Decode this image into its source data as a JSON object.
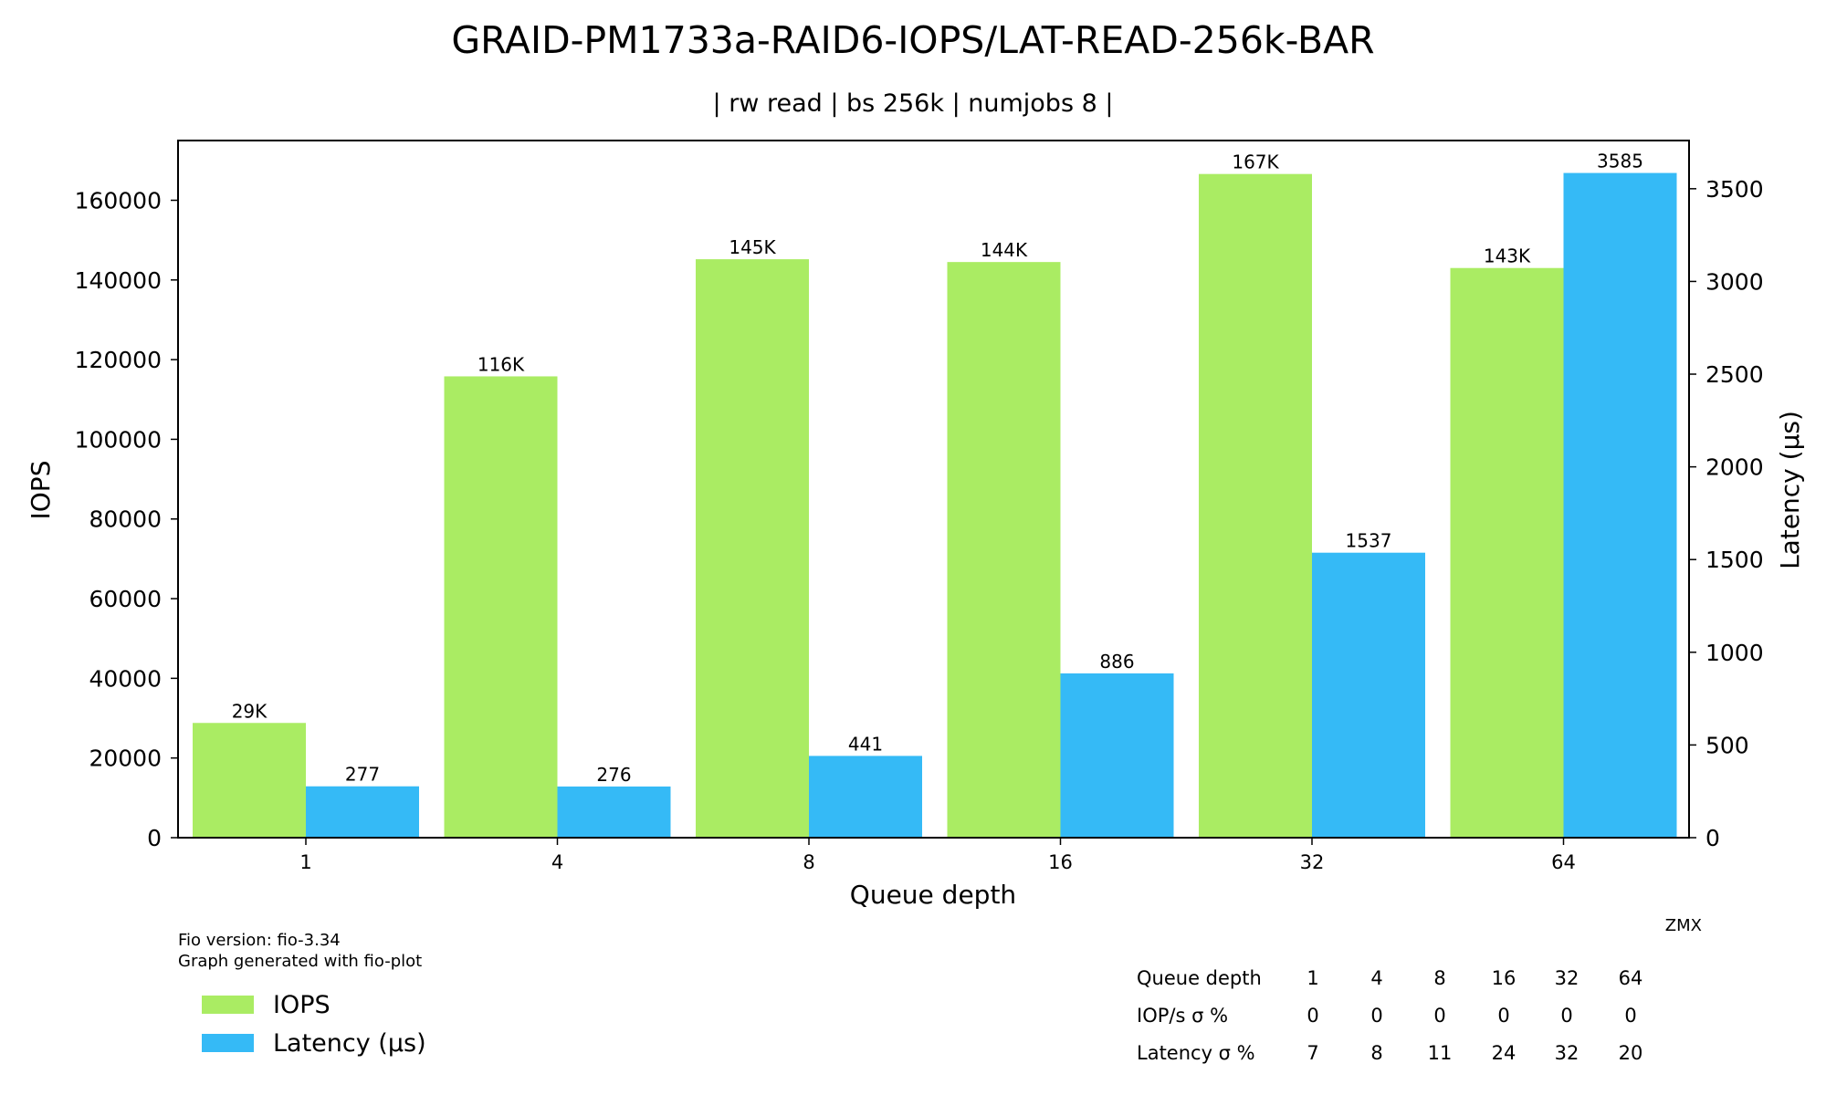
{
  "colors": {
    "iops": "#aaec63",
    "latency": "#35baf6"
  },
  "footer": {
    "fio_version": "Fio version: fio-3.34",
    "generated_with": "Graph generated with fio-plot",
    "author": "ZMX"
  },
  "legend": [
    "IOPS",
    "Latency (µs)"
  ],
  "stats_table": {
    "rows": [
      {
        "label": "Queue depth",
        "values": [
          "1",
          "4",
          "8",
          "16",
          "32",
          "64"
        ]
      },
      {
        "label": "IOP/s σ %",
        "values": [
          "0",
          "0",
          "0",
          "0",
          "0",
          "0"
        ]
      },
      {
        "label": "Latency σ %",
        "values": [
          "7",
          "8",
          "11",
          "24",
          "32",
          "20"
        ]
      }
    ]
  },
  "chart_data": {
    "type": "bar",
    "title": "GRAID-PM1733a-RAID6-IOPS/LAT-READ-256k-BAR",
    "subtitle": "| rw read | bs 256k | numjobs 8 |",
    "xlabel": "Queue depth",
    "ylabel": "IOPS",
    "y2label": "Latency (µs)",
    "categories": [
      "1",
      "4",
      "8",
      "16",
      "32",
      "64"
    ],
    "ylim": [
      0,
      175000
    ],
    "y2lim": [
      0,
      3760
    ],
    "yticks": [
      0,
      20000,
      40000,
      60000,
      80000,
      100000,
      120000,
      140000,
      160000
    ],
    "y2ticks": [
      0,
      500,
      1000,
      1500,
      2000,
      2500,
      3000,
      3500
    ],
    "series": [
      {
        "name": "IOPS",
        "axis": "left",
        "values": [
          28800,
          115800,
          145200,
          144500,
          166600,
          143000
        ],
        "labels": [
          "29K",
          "116K",
          "145K",
          "144K",
          "167K",
          "143K"
        ]
      },
      {
        "name": "Latency (µs)",
        "axis": "right",
        "values": [
          277,
          276,
          441,
          886,
          1537,
          3585
        ],
        "labels": [
          "277",
          "276",
          "441",
          "886",
          "1537",
          "3585"
        ]
      }
    ],
    "grid": false,
    "legend_position": "bottom-left"
  }
}
